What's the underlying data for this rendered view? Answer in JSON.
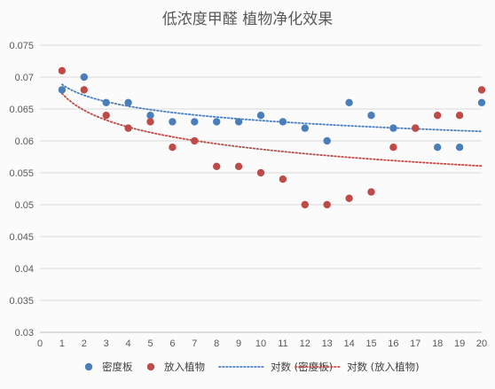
{
  "chart_data": {
    "type": "scatter",
    "title": "低浓度甲醛 植物净化效果",
    "xlabel": "",
    "ylabel": "",
    "xlim": [
      0,
      20
    ],
    "ylim": [
      0.03,
      0.075
    ],
    "x_ticks": [
      0,
      1,
      2,
      3,
      4,
      5,
      6,
      7,
      8,
      9,
      10,
      11,
      12,
      13,
      14,
      15,
      16,
      17,
      18,
      19,
      20
    ],
    "y_ticks": [
      0.03,
      0.035,
      0.04,
      0.045,
      0.05,
      0.055,
      0.06,
      0.065,
      0.07,
      0.075
    ],
    "y_tick_labels": [
      "0.03",
      "0.035",
      "0.04",
      "0.045",
      "0.05",
      "0.055",
      "0.06",
      "0.065",
      "0.07",
      "0.075"
    ],
    "grid": "horizontal",
    "legend_position": "bottom",
    "series": [
      {
        "name": "密度板",
        "color": "#4a7ebb",
        "marker": "circle",
        "x": [
          1,
          2,
          3,
          4,
          5,
          6,
          7,
          8,
          9,
          10,
          11,
          12,
          13,
          14,
          15,
          16,
          17,
          18,
          19,
          20
        ],
        "values": [
          0.068,
          0.07,
          0.066,
          0.066,
          0.064,
          0.063,
          0.063,
          0.063,
          0.063,
          0.064,
          0.063,
          0.062,
          0.06,
          0.066,
          0.064,
          0.062,
          0.062,
          0.059,
          0.059,
          0.066
        ]
      },
      {
        "name": "放入植物",
        "color": "#be4b48",
        "marker": "circle",
        "x": [
          1,
          2,
          3,
          4,
          5,
          6,
          7,
          8,
          9,
          10,
          11,
          12,
          13,
          14,
          15,
          16,
          17,
          18,
          19,
          20
        ],
        "values": [
          0.071,
          0.068,
          0.064,
          0.062,
          0.063,
          0.059,
          0.06,
          0.056,
          0.056,
          0.055,
          0.054,
          0.05,
          0.05,
          0.051,
          0.052,
          0.059,
          0.062,
          0.064,
          0.064,
          0.068
        ]
      }
    ],
    "trendlines": [
      {
        "name": "对数 (密度板)",
        "type": "logarithmic",
        "color": "#4a7ebb",
        "style": "dotted",
        "of_series": "密度板"
      },
      {
        "name": "对数 (放入植物)",
        "type": "logarithmic",
        "color": "#be4b48",
        "style": "dotted",
        "of_series": "放入植物"
      }
    ]
  }
}
